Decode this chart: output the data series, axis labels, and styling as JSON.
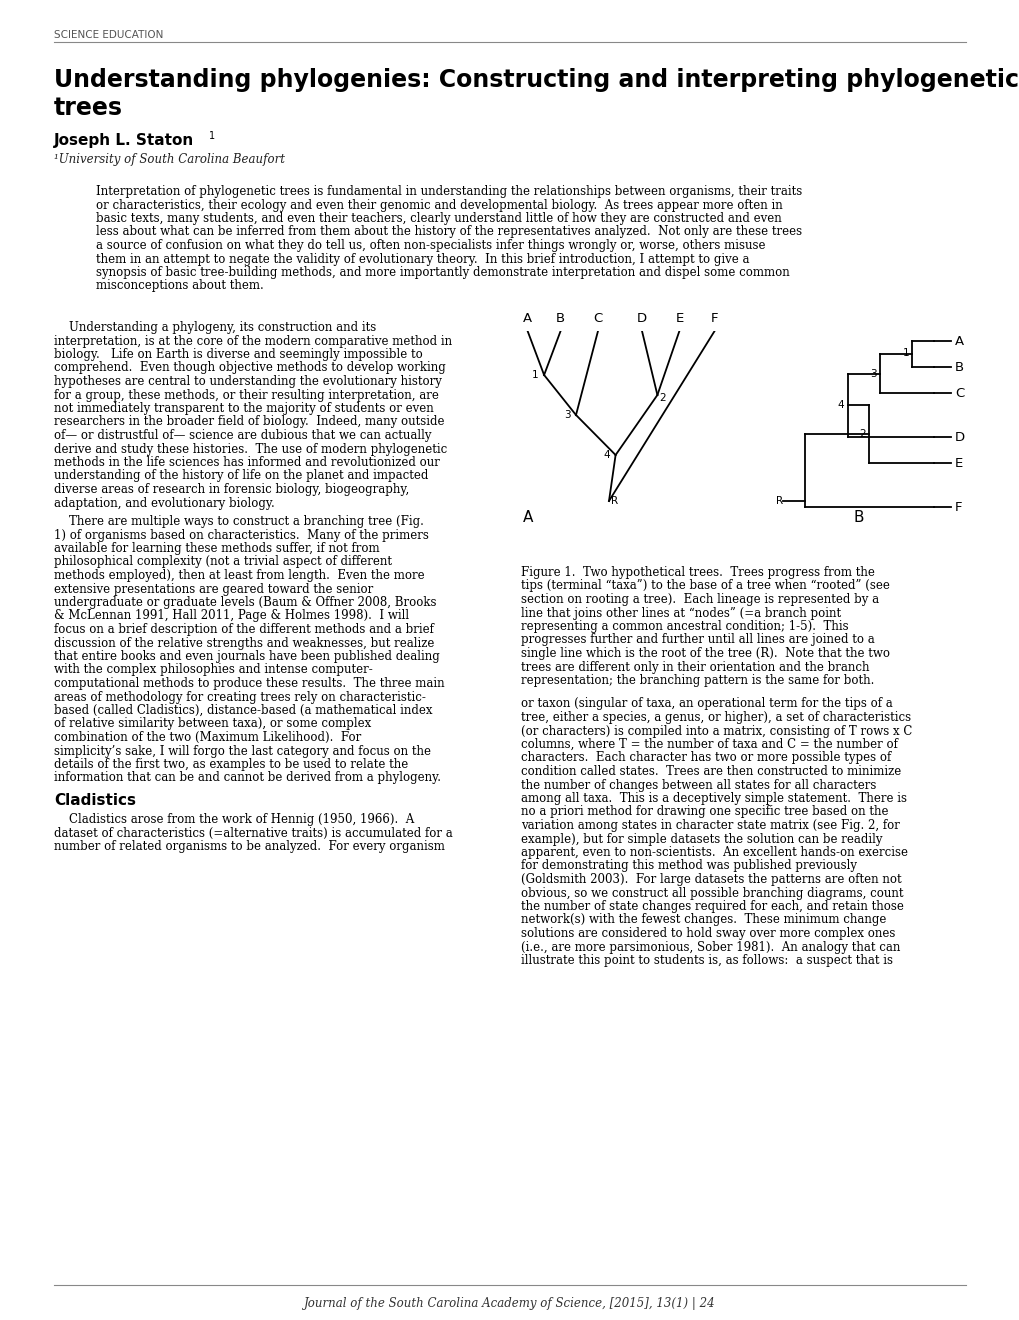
{
  "page_bg": "#ffffff",
  "header_text": "SCIENCE EDUCATION",
  "title_line1": "Understanding phylogenies: Constructing and interpreting phylogenetic",
  "title_line2": "trees",
  "author": "Joseph L. Staton",
  "affiliation": "¹University of South Carolina Beaufort",
  "abstract_lines": [
    "Interpretation of phylogenetic trees is fundamental in understanding the relationships between organisms, their traits",
    "or characteristics, their ecology and even their genomic and developmental biology.  As trees appear more often in",
    "basic texts, many students, and even their teachers, clearly understand little of how they are constructed and even",
    "less about what can be inferred from them about the history of the representatives analyzed.  Not only are these trees",
    "a source of confusion on what they do tell us, often non-specialists infer things wrongly or, worse, others misuse",
    "them in an attempt to negate the validity of evolutionary theory.  In this brief introduction, I attempt to give a",
    "synopsis of basic tree-building methods, and more importantly demonstrate interpretation and dispel some common",
    "misconceptions about them."
  ],
  "left_col_para1_lines": [
    "    Understanding a phylogeny, its construction and its",
    "interpretation, is at the core of the modern comparative method in",
    "biology.   Life on Earth is diverse and seemingly impossible to",
    "comprehend.  Even though objective methods to develop working",
    "hypotheses are central to understanding the evolutionary history",
    "for a group, these methods, or their resulting interpretation, are",
    "not immediately transparent to the majority of students or even",
    "researchers in the broader field of biology.  Indeed, many outside",
    "of— or distrustful of— science are dubious that we can actually",
    "derive and study these histories.  The use of modern phylogenetic",
    "methods in the life sciences has informed and revolutionized our",
    "understanding of the history of life on the planet and impacted",
    "diverse areas of research in forensic biology, biogeography,",
    "adaptation, and evolutionary biology."
  ],
  "left_col_para2_lines": [
    "    There are multiple ways to construct a branching tree (Fig.",
    "1) of organisms based on characteristics.  Many of the primers",
    "available for learning these methods suffer, if not from",
    "philosophical complexity (not a trivial aspect of different",
    "methods employed), then at least from length.  Even the more",
    "extensive presentations are geared toward the senior",
    "undergraduate or graduate levels (Baum & Offner 2008, Brooks",
    "& McLennan 1991, Hall 2011, Page & Holmes 1998).  I will",
    "focus on a brief description of the different methods and a brief",
    "discussion of the relative strengths and weaknesses, but realize",
    "that entire books and even journals have been published dealing",
    "with the complex philosophies and intense computer-",
    "computational methods to produce these results.  The three main",
    "areas of methodology for creating trees rely on characteristic-",
    "based (called Cladistics), distance-based (a mathematical index",
    "of relative similarity between taxa), or some complex",
    "combination of the two (Maximum Likelihood).  For",
    "simplicity’s sake, I will forgo the last category and focus on the",
    "details of the first two, as examples to be used to relate the",
    "information that can be and cannot be derived from a phylogeny."
  ],
  "cladistics_header": "Cladistics",
  "cladistics_para_lines": [
    "    Cladistics arose from the work of Hennig (1950, 1966).  A",
    "dataset of characteristics (=alternative traits) is accumulated for a",
    "number of related organisms to be analyzed.  For every organism"
  ],
  "right_col_caption_lines": [
    "Figure 1.  Two hypothetical trees.  Trees progress from the",
    "tips (terminal “taxa”) to the base of a tree when “rooted” (see",
    "section on rooting a tree).  Each lineage is represented by a",
    "line that joins other lines at “nodes” (=a branch point",
    "representing a common ancestral condition; 1-5).  This",
    "progresses further and further until all lines are joined to a",
    "single line which is the root of the tree (R).  Note that the two",
    "trees are different only in their orientation and the branch",
    "representation; the branching pattern is the same for both."
  ],
  "right_col_para_lines": [
    "or taxon (singular of taxa, an operational term for the tips of a",
    "tree, either a species, a genus, or higher), a set of characteristics",
    "(or characters) is compiled into a matrix, consisting of T rows x C",
    "columns, where T = the number of taxa and C = the number of",
    "characters.  Each character has two or more possible types of",
    "condition called states.  Trees are then constructed to minimize",
    "the number of changes between all states for all characters",
    "among all taxa.  This is a deceptively simple statement.  There is",
    "no a priori method for drawing one specific tree based on the",
    "variation among states in character state matrix (see Fig. 2, for",
    "example), but for simple datasets the solution can be readily",
    "apparent, even to non-scientists.  An excellent hands-on exercise",
    "for demonstrating this method was published previously",
    "(Goldsmith 2003).  For large datasets the patterns are often not",
    "obvious, so we construct all possible branching diagrams, count",
    "the number of state changes required for each, and retain those",
    "network(s) with the fewest changes.  These minimum change",
    "solutions are considered to hold sway over more complex ones",
    "(i.e., are more parsimonious, Sober 1981).  An analogy that can",
    "illustrate this point to students is, as follows:  a suspect that is"
  ],
  "footer_text": "Journal of the South Carolina Academy of Science, [2015], 13(1) | 24"
}
